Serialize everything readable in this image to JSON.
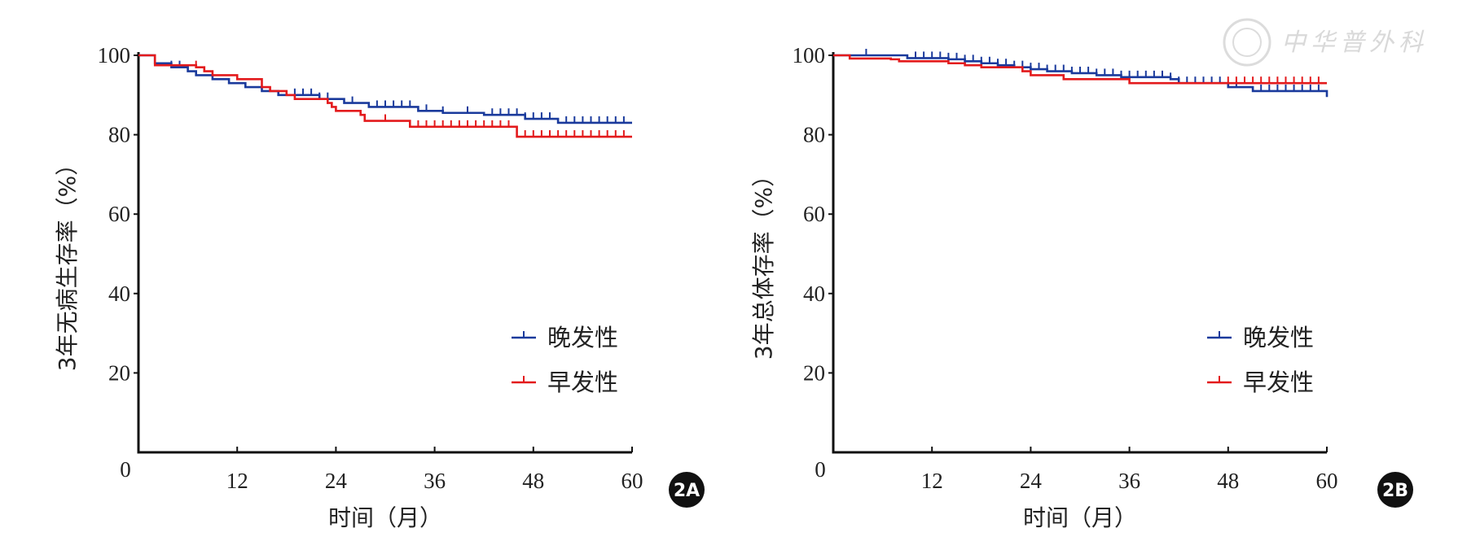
{
  "watermark": {
    "text": "中华普外科",
    "color": "#d9d9d9"
  },
  "colors": {
    "late": "#1a3a9c",
    "early": "#e31a1c",
    "axis": "#111111"
  },
  "chart_data": [
    {
      "type": "line",
      "panel_label": "2A",
      "title": "",
      "xlabel": "时间（月）",
      "ylabel": "3年无病生存率（%）",
      "x_ticks": [
        12,
        24,
        36,
        48,
        60
      ],
      "y_ticks": [
        20,
        40,
        60,
        80,
        100
      ],
      "origin_label": "0",
      "xlim": [
        0,
        60
      ],
      "ylim": [
        0,
        100
      ],
      "step": true,
      "legend_position": "bottom-right",
      "series": [
        {
          "name": "晚发性",
          "color": "#1a3a9c",
          "points": [
            [
              0,
              100
            ],
            [
              2,
              100
            ],
            [
              2,
              98
            ],
            [
              4,
              97
            ],
            [
              6,
              96
            ],
            [
              7,
              95
            ],
            [
              9,
              94
            ],
            [
              11,
              93
            ],
            [
              13,
              92
            ],
            [
              15,
              91
            ],
            [
              17,
              90
            ],
            [
              22,
              89
            ],
            [
              25,
              88
            ],
            [
              28,
              87
            ],
            [
              34,
              86
            ],
            [
              37,
              85.5
            ],
            [
              42,
              85
            ],
            [
              47,
              84
            ],
            [
              51,
              83
            ],
            [
              60,
              83
            ]
          ],
          "censor_times": [
            4,
            5,
            6,
            19,
            20,
            21,
            22,
            23,
            26,
            29,
            30,
            31,
            32,
            33,
            35,
            37,
            40,
            43,
            44,
            45,
            46,
            47,
            48,
            49,
            50,
            52,
            53,
            54,
            55,
            56,
            57,
            58,
            59
          ]
        },
        {
          "name": "早发性",
          "color": "#e31a1c",
          "points": [
            [
              0,
              100
            ],
            [
              2,
              100
            ],
            [
              2,
              97.5
            ],
            [
              7,
              97
            ],
            [
              8,
              96
            ],
            [
              9,
              95
            ],
            [
              12,
              94
            ],
            [
              15,
              92
            ],
            [
              16,
              91
            ],
            [
              18,
              90
            ],
            [
              19,
              89
            ],
            [
              23,
              88
            ],
            [
              23.5,
              87
            ],
            [
              24,
              86
            ],
            [
              27,
              85
            ],
            [
              27.5,
              83.5
            ],
            [
              33,
              82
            ],
            [
              46,
              82
            ],
            [
              46,
              79.5
            ],
            [
              60,
              79.5
            ]
          ],
          "censor_times": [
            7,
            30,
            34,
            35,
            36,
            37,
            38,
            39,
            40,
            41,
            42,
            43,
            44,
            45,
            47,
            48,
            49,
            50,
            51,
            52,
            53,
            54,
            55,
            56,
            57,
            58,
            59
          ]
        }
      ]
    },
    {
      "type": "line",
      "panel_label": "2B",
      "title": "",
      "xlabel": "时间（月）",
      "ylabel": "3年总体存率（%）",
      "x_ticks": [
        12,
        24,
        36,
        48,
        60
      ],
      "y_ticks": [
        20,
        40,
        60,
        80,
        100
      ],
      "origin_label": "0",
      "xlim": [
        0,
        60
      ],
      "ylim": [
        0,
        100
      ],
      "step": true,
      "legend_position": "bottom-right",
      "series": [
        {
          "name": "晚发性",
          "color": "#1a3a9c",
          "points": [
            [
              0,
              100
            ],
            [
              9,
              100
            ],
            [
              9,
              99.3
            ],
            [
              14,
              99
            ],
            [
              16,
              98.5
            ],
            [
              18,
              98
            ],
            [
              20,
              97.5
            ],
            [
              22,
              97
            ],
            [
              24,
              96.5
            ],
            [
              26,
              96
            ],
            [
              29,
              95.5
            ],
            [
              32,
              95
            ],
            [
              35,
              94.5
            ],
            [
              41,
              94
            ],
            [
              42,
              93
            ],
            [
              48,
              92
            ],
            [
              51,
              91
            ],
            [
              60,
              91
            ],
            [
              60,
              89.5
            ]
          ],
          "censor_times": [
            4,
            10,
            11,
            12,
            13,
            14,
            15,
            16,
            17,
            18,
            19,
            20,
            21,
            22,
            23,
            24,
            25,
            26,
            27,
            28,
            29,
            30,
            31,
            32,
            33,
            34,
            35,
            36,
            37,
            38,
            39,
            40,
            41,
            42,
            43,
            44,
            45,
            46,
            47,
            49,
            52,
            53,
            54,
            55,
            56,
            57,
            58,
            59
          ]
        },
        {
          "name": "早发性",
          "color": "#e31a1c",
          "points": [
            [
              0,
              100
            ],
            [
              2,
              100
            ],
            [
              2,
              99.2
            ],
            [
              7,
              99
            ],
            [
              8,
              98.5
            ],
            [
              14,
              98
            ],
            [
              16,
              97.5
            ],
            [
              18,
              97
            ],
            [
              23,
              96
            ],
            [
              24,
              95
            ],
            [
              28,
              94
            ],
            [
              36,
              93
            ],
            [
              60,
              93
            ]
          ],
          "censor_times": [
            48,
            49,
            50,
            51,
            52,
            53,
            54,
            55,
            56,
            57,
            58,
            59
          ]
        }
      ]
    }
  ]
}
